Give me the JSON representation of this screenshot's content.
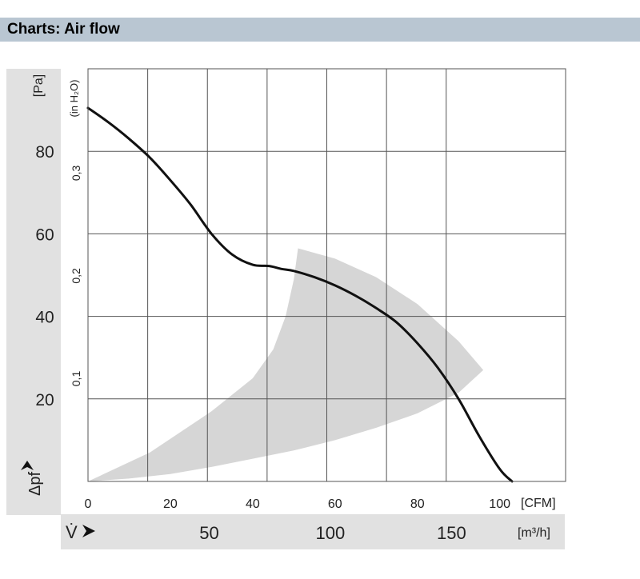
{
  "header": {
    "title": "Charts: Air flow"
  },
  "chart_data": {
    "type": "line",
    "title": "",
    "ylabel_primary": "[Pa]",
    "ylabel_secondary": "(in H₂O)",
    "y_axis_symbol": "Δpf",
    "x_axis_symbol": "V̇",
    "xlabel_primary": "[CFM]",
    "xlabel_secondary": "[m³/h]",
    "x_ticks": [
      "0",
      "20",
      "40",
      "60",
      "80",
      "100"
    ],
    "x_ticks_m3h": [
      "50",
      "100",
      "150"
    ],
    "y_ticks": [
      "20",
      "40",
      "60",
      "80"
    ],
    "y_ticks_inh2o": [
      "0,1",
      "0,2",
      "0,3"
    ],
    "xlim": [
      0,
      116
    ],
    "ylim": [
      0,
      100
    ],
    "grid": true,
    "x_grid_cfm": [
      14.5,
      29,
      43.5,
      58,
      72.5,
      87
    ],
    "series": [
      {
        "x": [
          0,
          5,
          10,
          15,
          20,
          25,
          30,
          35,
          40,
          44,
          47,
          50,
          55,
          60,
          65,
          70,
          75,
          80,
          85,
          90,
          95,
          100,
          103
        ],
        "y": [
          90.5,
          87,
          83,
          78.5,
          73,
          67,
          60,
          55,
          52.5,
          52.2,
          51.5,
          51,
          49.5,
          47.5,
          45,
          42,
          38.5,
          33.5,
          27.5,
          20,
          11,
          3,
          0
        ]
      }
    ],
    "shaded_region": {
      "description_values": "operating range",
      "upper_boundary": {
        "x": [
          51,
          60,
          70,
          80,
          90,
          96
        ],
        "y": [
          56.5,
          54,
          49.5,
          43,
          34,
          27
        ]
      },
      "lower_boundary": {
        "x": [
          0,
          10,
          20,
          30,
          40,
          50,
          60,
          70,
          80,
          90,
          96
        ],
        "y": [
          0,
          0.7,
          1.8,
          3.5,
          5.5,
          7.5,
          10,
          13,
          16.5,
          21.5,
          27
        ]
      },
      "left_boundary": {
        "x": [
          0,
          15,
          30,
          40,
          45,
          48,
          50,
          51
        ],
        "y": [
          0,
          7,
          17,
          25,
          32,
          40,
          49,
          56.5
        ]
      }
    }
  }
}
